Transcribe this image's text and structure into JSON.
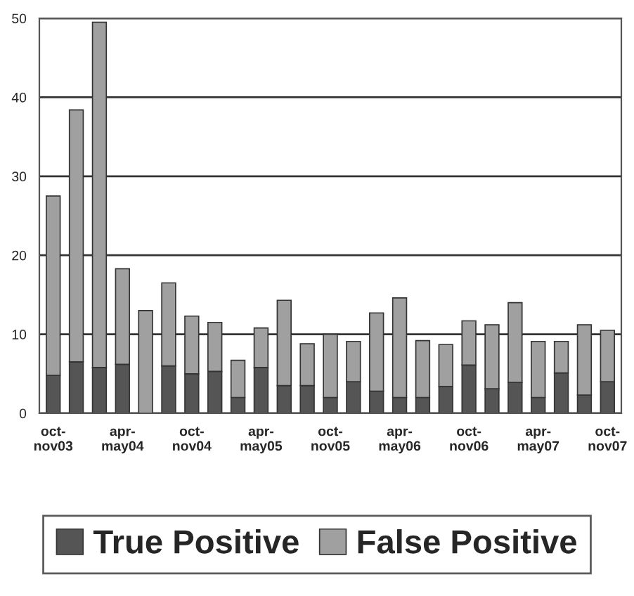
{
  "chart_data": {
    "type": "bar",
    "stacked": true,
    "categories": [
      "oct-\nnov03",
      null,
      null,
      "apr-\nmay04",
      null,
      null,
      "oct-\nnov04",
      null,
      null,
      "apr-\nmay05",
      null,
      null,
      "oct-\nnov05",
      null,
      null,
      "apr-\nmay06",
      null,
      null,
      "oct-\nnov06",
      null,
      null,
      "apr-\nmay07",
      null,
      null,
      "oct-\nnov07"
    ],
    "series": [
      {
        "name": "True Positive",
        "color": "#555555",
        "values": [
          4.8,
          6.5,
          5.8,
          6.2,
          0,
          6,
          5,
          5.3,
          2,
          5.8,
          3.5,
          3.5,
          2,
          4,
          2.8,
          2,
          2,
          3.4,
          6.1,
          3.1,
          3.9,
          2,
          5.1,
          2.3,
          4
        ]
      },
      {
        "name": "False Positive",
        "color": "#a0a0a0",
        "values": [
          22.7,
          31.9,
          43.7,
          12.1,
          13,
          10.5,
          7.3,
          6.2,
          4.7,
          5,
          10.8,
          5.3,
          8,
          5.1,
          9.9,
          12.6,
          7.2,
          5.3,
          5.6,
          8.1,
          10.1,
          7.1,
          4,
          8.9,
          6.5
        ]
      }
    ],
    "ylim": [
      0,
      50
    ],
    "yticks": [
      0,
      10,
      20,
      30,
      40,
      50
    ],
    "grid": "y",
    "legend": "bottom"
  }
}
